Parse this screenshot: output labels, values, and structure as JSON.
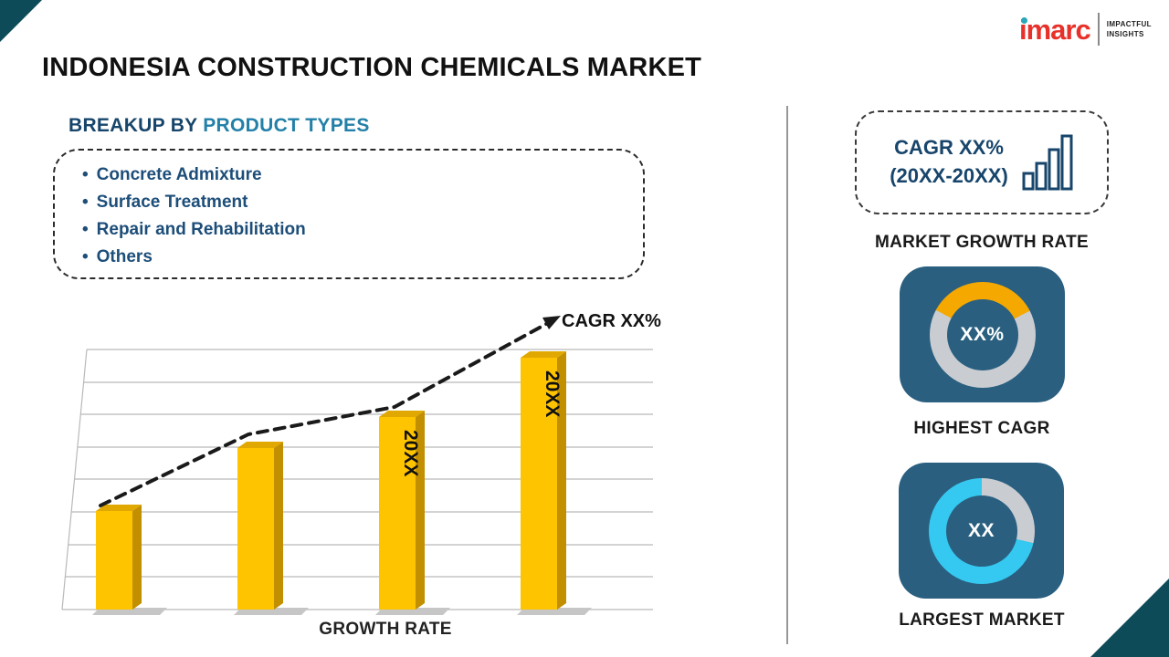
{
  "page": {
    "title": "INDONESIA CONSTRUCTION CHEMICALS MARKET"
  },
  "logo": {
    "brand": "imarc",
    "tagline1": "IMPACTFUL",
    "tagline2": "INSIGHTS"
  },
  "breakup": {
    "label_prefix": "BREAKUP BY ",
    "label_highlight": "PRODUCT TYPES",
    "items": [
      "Concrete Admixture",
      "Surface Treatment",
      "Repair and Rehabilitation",
      "Others"
    ]
  },
  "right_panel": {
    "cagr_box": {
      "line1": "CAGR XX%",
      "line2": "(20XX-20XX)"
    },
    "market_growth_label": "MARKET GROWTH RATE",
    "highest_cagr_label": "HIGHEST CAGR",
    "largest_market_label": "LARGEST MARKET"
  },
  "colors": {
    "navy_tile": "#2a5f80",
    "bar_yellow": "#FFC400",
    "donut_yellow": "#F5A800",
    "donut_cyan": "#35C8F0",
    "donut_gray": "#C9CDD2",
    "corner_teal": "#0d4b59",
    "dark_navy": "#17456b",
    "logo_red": "#e8312a"
  },
  "chart_data": [
    {
      "type": "bar",
      "title": "Growth Rate trend with CAGR annotation",
      "categories": [
        "",
        "",
        "20XX",
        "20XX"
      ],
      "bar_labels": [
        "",
        "",
        "20XX",
        "20XX"
      ],
      "values_relative": [
        0.38,
        0.62,
        0.74,
        0.97
      ],
      "bar_color": "#FFC400",
      "xlabel": "GROWTH RATE",
      "ylabel": "",
      "trend_annotation": "CAGR XX%",
      "trend_style": "dashed-arrow-ascending",
      "grid": true,
      "legend": false
    },
    {
      "type": "donut",
      "center_label": "XX%",
      "caption": "HIGHEST CAGR",
      "start_deg": -62,
      "segments": [
        {
          "name": "highlight",
          "color": "#F5A800",
          "sweep_deg": 125
        },
        {
          "name": "remainder",
          "color": "#C9CDD2",
          "sweep_deg": 235
        }
      ]
    },
    {
      "type": "donut",
      "center_label": "XX",
      "caption": "LARGEST MARKET",
      "start_deg": 0,
      "segments": [
        {
          "name": "remainder",
          "color": "#C9CDD2",
          "sweep_deg": 103
        },
        {
          "name": "highlight",
          "color": "#35C8F0",
          "sweep_deg": 257
        }
      ]
    }
  ]
}
